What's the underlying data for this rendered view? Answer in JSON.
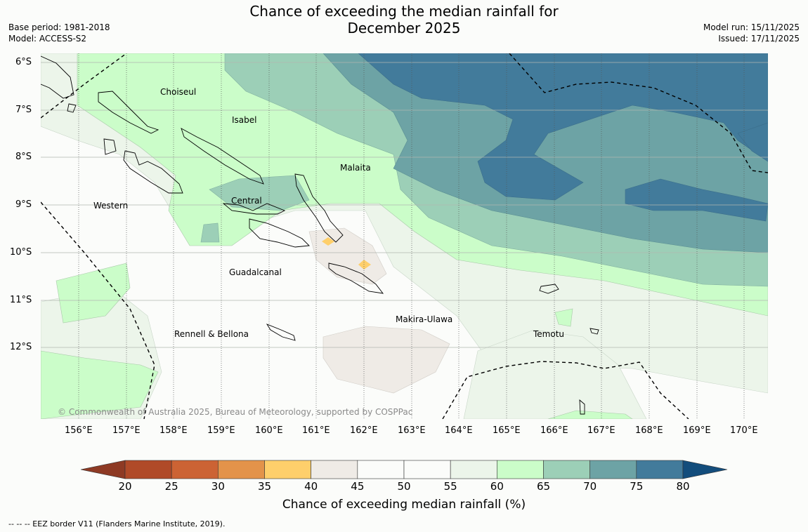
{
  "title_line1": "Chance of exceeding the median rainfall for",
  "title_line2": "December 2025",
  "base_period": "Base period: 1981-2018",
  "model": "Model: ACCESS-S2",
  "model_run": "Model run: 15/11/2025",
  "issued": "Issued: 17/11/2025",
  "lat_labels": [
    "6°S",
    "7°S",
    "8°S",
    "9°S",
    "10°S",
    "11°S",
    "12°S"
  ],
  "lon_labels": [
    "156°E",
    "157°E",
    "158°E",
    "159°E",
    "160°E",
    "161°E",
    "162°E",
    "163°E",
    "164°E",
    "165°E",
    "166°E",
    "167°E",
    "168°E",
    "169°E",
    "170°E"
  ],
  "places": [
    "Choiseul",
    "Isabel",
    "Malaita",
    "Western",
    "Central",
    "Guadalcanal",
    "Makira-Ulawa",
    "Temotu",
    "Rennell & Bellona"
  ],
  "copyright": "© Commonwealth of Australia 2025, Bureau of Meteorology, supported by COSPPac",
  "colorbar": {
    "title": "Chance of exceeding median rainfall (%)",
    "ticks": [
      "20",
      "25",
      "30",
      "35",
      "40",
      "45",
      "50",
      "55",
      "60",
      "65",
      "70",
      "75",
      "80"
    ],
    "colors": [
      "#b04a28",
      "#cc6334",
      "#e3934a",
      "#fecf6b",
      "#efebe6",
      "#fbfcfa",
      "#fbfcfa",
      "#ecf5ea",
      "#cbfdc9",
      "#9ccfb7",
      "#6da3a5",
      "#427b9b"
    ],
    "under_color": "#8e3a24",
    "over_color": "#134d7c"
  },
  "footer": "--  --  -- EEZ border V11 (Flanders Marine Institute, 2019)."
}
